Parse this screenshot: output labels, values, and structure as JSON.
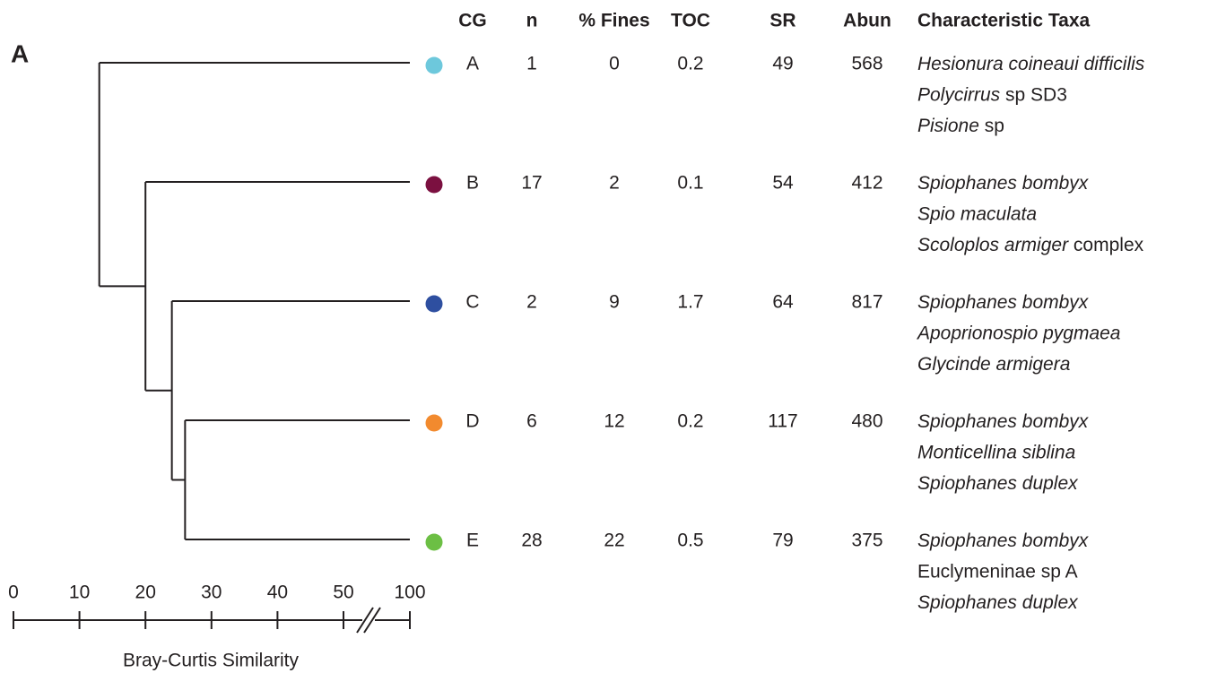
{
  "panel_label": "A",
  "table": {
    "headers": [
      "CG",
      "n",
      "% Fines",
      "TOC",
      "SR",
      "Abun",
      "Characteristic Taxa"
    ],
    "rows": [
      {
        "cg": "A",
        "color": "#6dc8dc",
        "n": 1,
        "fines": 0,
        "toc": 0.2,
        "sr": 49,
        "abun": 568,
        "taxa": [
          {
            "italic": "Hesionura coineaui difficilis"
          },
          {
            "italic": "Polycirrus",
            "plain": "sp SD3"
          },
          {
            "italic": "Pisione",
            "plain": "sp"
          }
        ]
      },
      {
        "cg": "B",
        "color": "#7b1040",
        "n": 17,
        "fines": 2,
        "toc": 0.1,
        "sr": 54,
        "abun": 412,
        "taxa": [
          {
            "italic": "Spiophanes bombyx"
          },
          {
            "italic": "Spio maculata"
          },
          {
            "italic": "Scoloplos armiger",
            "plain": "complex"
          }
        ]
      },
      {
        "cg": "C",
        "color": "#2e4fa0",
        "n": 2,
        "fines": 9,
        "toc": 1.7,
        "sr": 64,
        "abun": 817,
        "taxa": [
          {
            "italic": "Spiophanes bombyx"
          },
          {
            "italic": "Apoprionospio pygmaea"
          },
          {
            "italic": "Glycinde armigera"
          }
        ]
      },
      {
        "cg": "D",
        "color": "#f28a2e",
        "n": 6,
        "fines": 12,
        "toc": 0.2,
        "sr": 117,
        "abun": 480,
        "taxa": [
          {
            "italic": "Spiophanes bombyx"
          },
          {
            "italic": "Monticellina siblina"
          },
          {
            "italic": "Spiophanes duplex"
          }
        ]
      },
      {
        "cg": "E",
        "color": "#6cbf44",
        "n": 28,
        "fines": 22,
        "toc": 0.5,
        "sr": 79,
        "abun": 375,
        "taxa": [
          {
            "italic": "Spiophanes bombyx"
          },
          {
            "plain": "Euclymeninae sp A"
          },
          {
            "italic": "Spiophanes duplex"
          }
        ]
      }
    ]
  },
  "dendrogram": {
    "tree": {
      "similarity": 13,
      "children": [
        0,
        {
          "similarity": 20,
          "children": [
            1,
            {
              "similarity": 24,
              "children": [
                2,
                {
                  "similarity": 26,
                  "children": [
                    3,
                    4
                  ]
                }
              ]
            }
          ]
        }
      ]
    },
    "leaf_similarity": 100,
    "xticks": [
      0,
      10,
      20,
      30,
      40,
      50,
      100
    ],
    "xlabel": "Bray-Curtis Similarity"
  }
}
